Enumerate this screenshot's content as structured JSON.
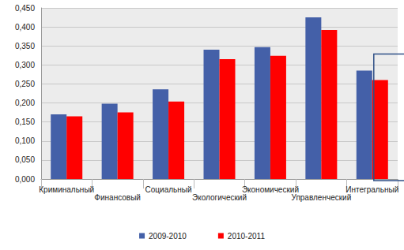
{
  "chart_data": {
    "type": "bar",
    "categories": [
      "Криминальный",
      "Финансовый",
      "Социальный",
      "Экологический",
      "Экономический",
      "Управленческий",
      "Интегральный"
    ],
    "series": [
      {
        "name": "2009-2010",
        "color": "#4460a8",
        "values": [
          0.17,
          0.198,
          0.236,
          0.34,
          0.347,
          0.425,
          0.285
        ]
      },
      {
        "name": "2010-2011",
        "color": "#ff0000",
        "values": [
          0.165,
          0.175,
          0.204,
          0.315,
          0.324,
          0.392,
          0.26
        ]
      }
    ],
    "ylim": [
      0,
      0.45
    ],
    "yticks": [
      {
        "value": 0,
        "label": "0,000"
      },
      {
        "value": 0.05,
        "label": "0,050"
      },
      {
        "value": 0.1,
        "label": "0,100"
      },
      {
        "value": 0.15,
        "label": "0,150"
      },
      {
        "value": 0.2,
        "label": "0,200"
      },
      {
        "value": 0.25,
        "label": "0,250"
      },
      {
        "value": 0.3,
        "label": "0,300"
      },
      {
        "value": 0.35,
        "label": "0,350"
      },
      {
        "value": 0.4,
        "label": "0,400"
      },
      {
        "value": 0.45,
        "label": "0,450"
      }
    ],
    "grid": true,
    "legend": "bottom"
  }
}
